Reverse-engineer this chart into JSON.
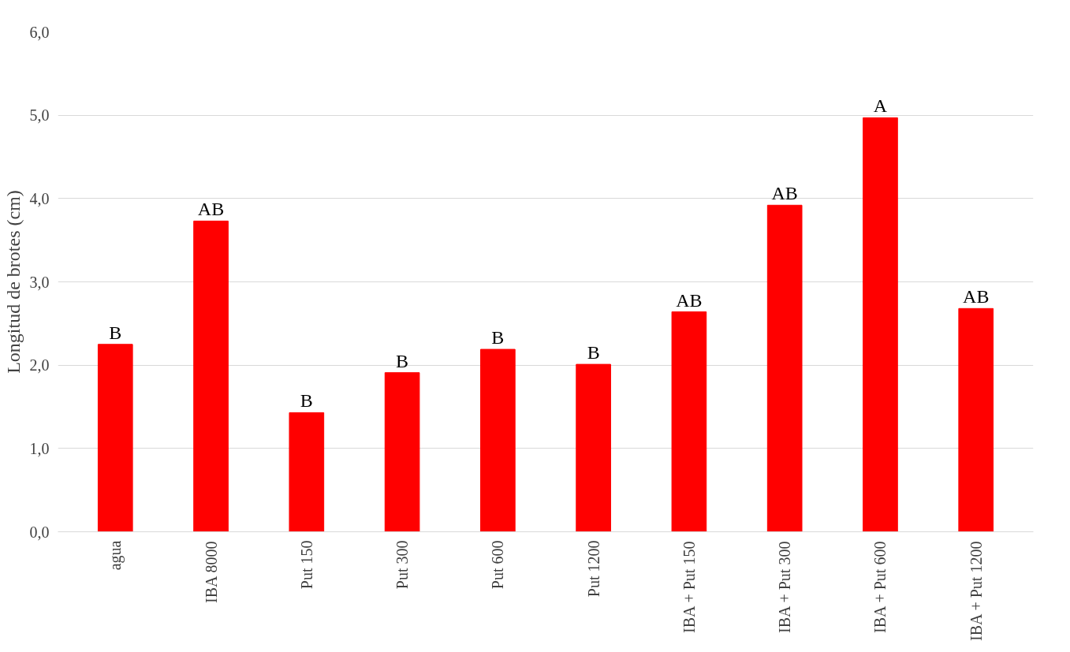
{
  "chart_data": {
    "type": "bar",
    "ylabel": "Longitud de brotes (cm)",
    "categories": [
      "agua",
      "IBA 8000",
      "Put 150",
      "Put 300",
      "Put 600",
      "Put 1200",
      "IBA + Put 150",
      "IBA + Put 300",
      "IBA + Put 600",
      "IBA + Put 1200"
    ],
    "values": [
      2.25,
      3.73,
      1.43,
      1.91,
      2.19,
      2.01,
      2.64,
      3.92,
      4.97,
      2.68
    ],
    "color": "#ff0000",
    "ylim": [
      0,
      6
    ],
    "yticks": [
      {
        "value": 0,
        "label": "0,0"
      },
      {
        "value": 1,
        "label": "1,0"
      },
      {
        "value": 2,
        "label": "2,0"
      },
      {
        "value": 3,
        "label": "3,0"
      },
      {
        "value": 4,
        "label": "4,0"
      },
      {
        "value": 5,
        "label": "5,0"
      },
      {
        "value": 6,
        "label": "6,0"
      }
    ],
    "grid": "y",
    "annotations": [
      {
        "text": "B",
        "x": "agua",
        "y": 2.25
      },
      {
        "text": "AB",
        "x": "IBA 8000",
        "y": 3.73
      },
      {
        "text": "B",
        "x": "Put 150",
        "y": 1.43
      },
      {
        "text": "B",
        "x": "Put 300",
        "y": 1.91
      },
      {
        "text": "B",
        "x": "Put 600",
        "y": 2.19
      },
      {
        "text": "B",
        "x": "Put 1200",
        "y": 2.01
      },
      {
        "text": "AB",
        "x": "IBA + Put 150",
        "y": 2.64
      },
      {
        "text": "AB",
        "x": "IBA + Put 300",
        "y": 3.92
      },
      {
        "text": "A",
        "x": "IBA + Put 600",
        "y": 4.97
      },
      {
        "text": "AB",
        "x": "IBA + Put 1200",
        "y": 2.68
      }
    ]
  }
}
